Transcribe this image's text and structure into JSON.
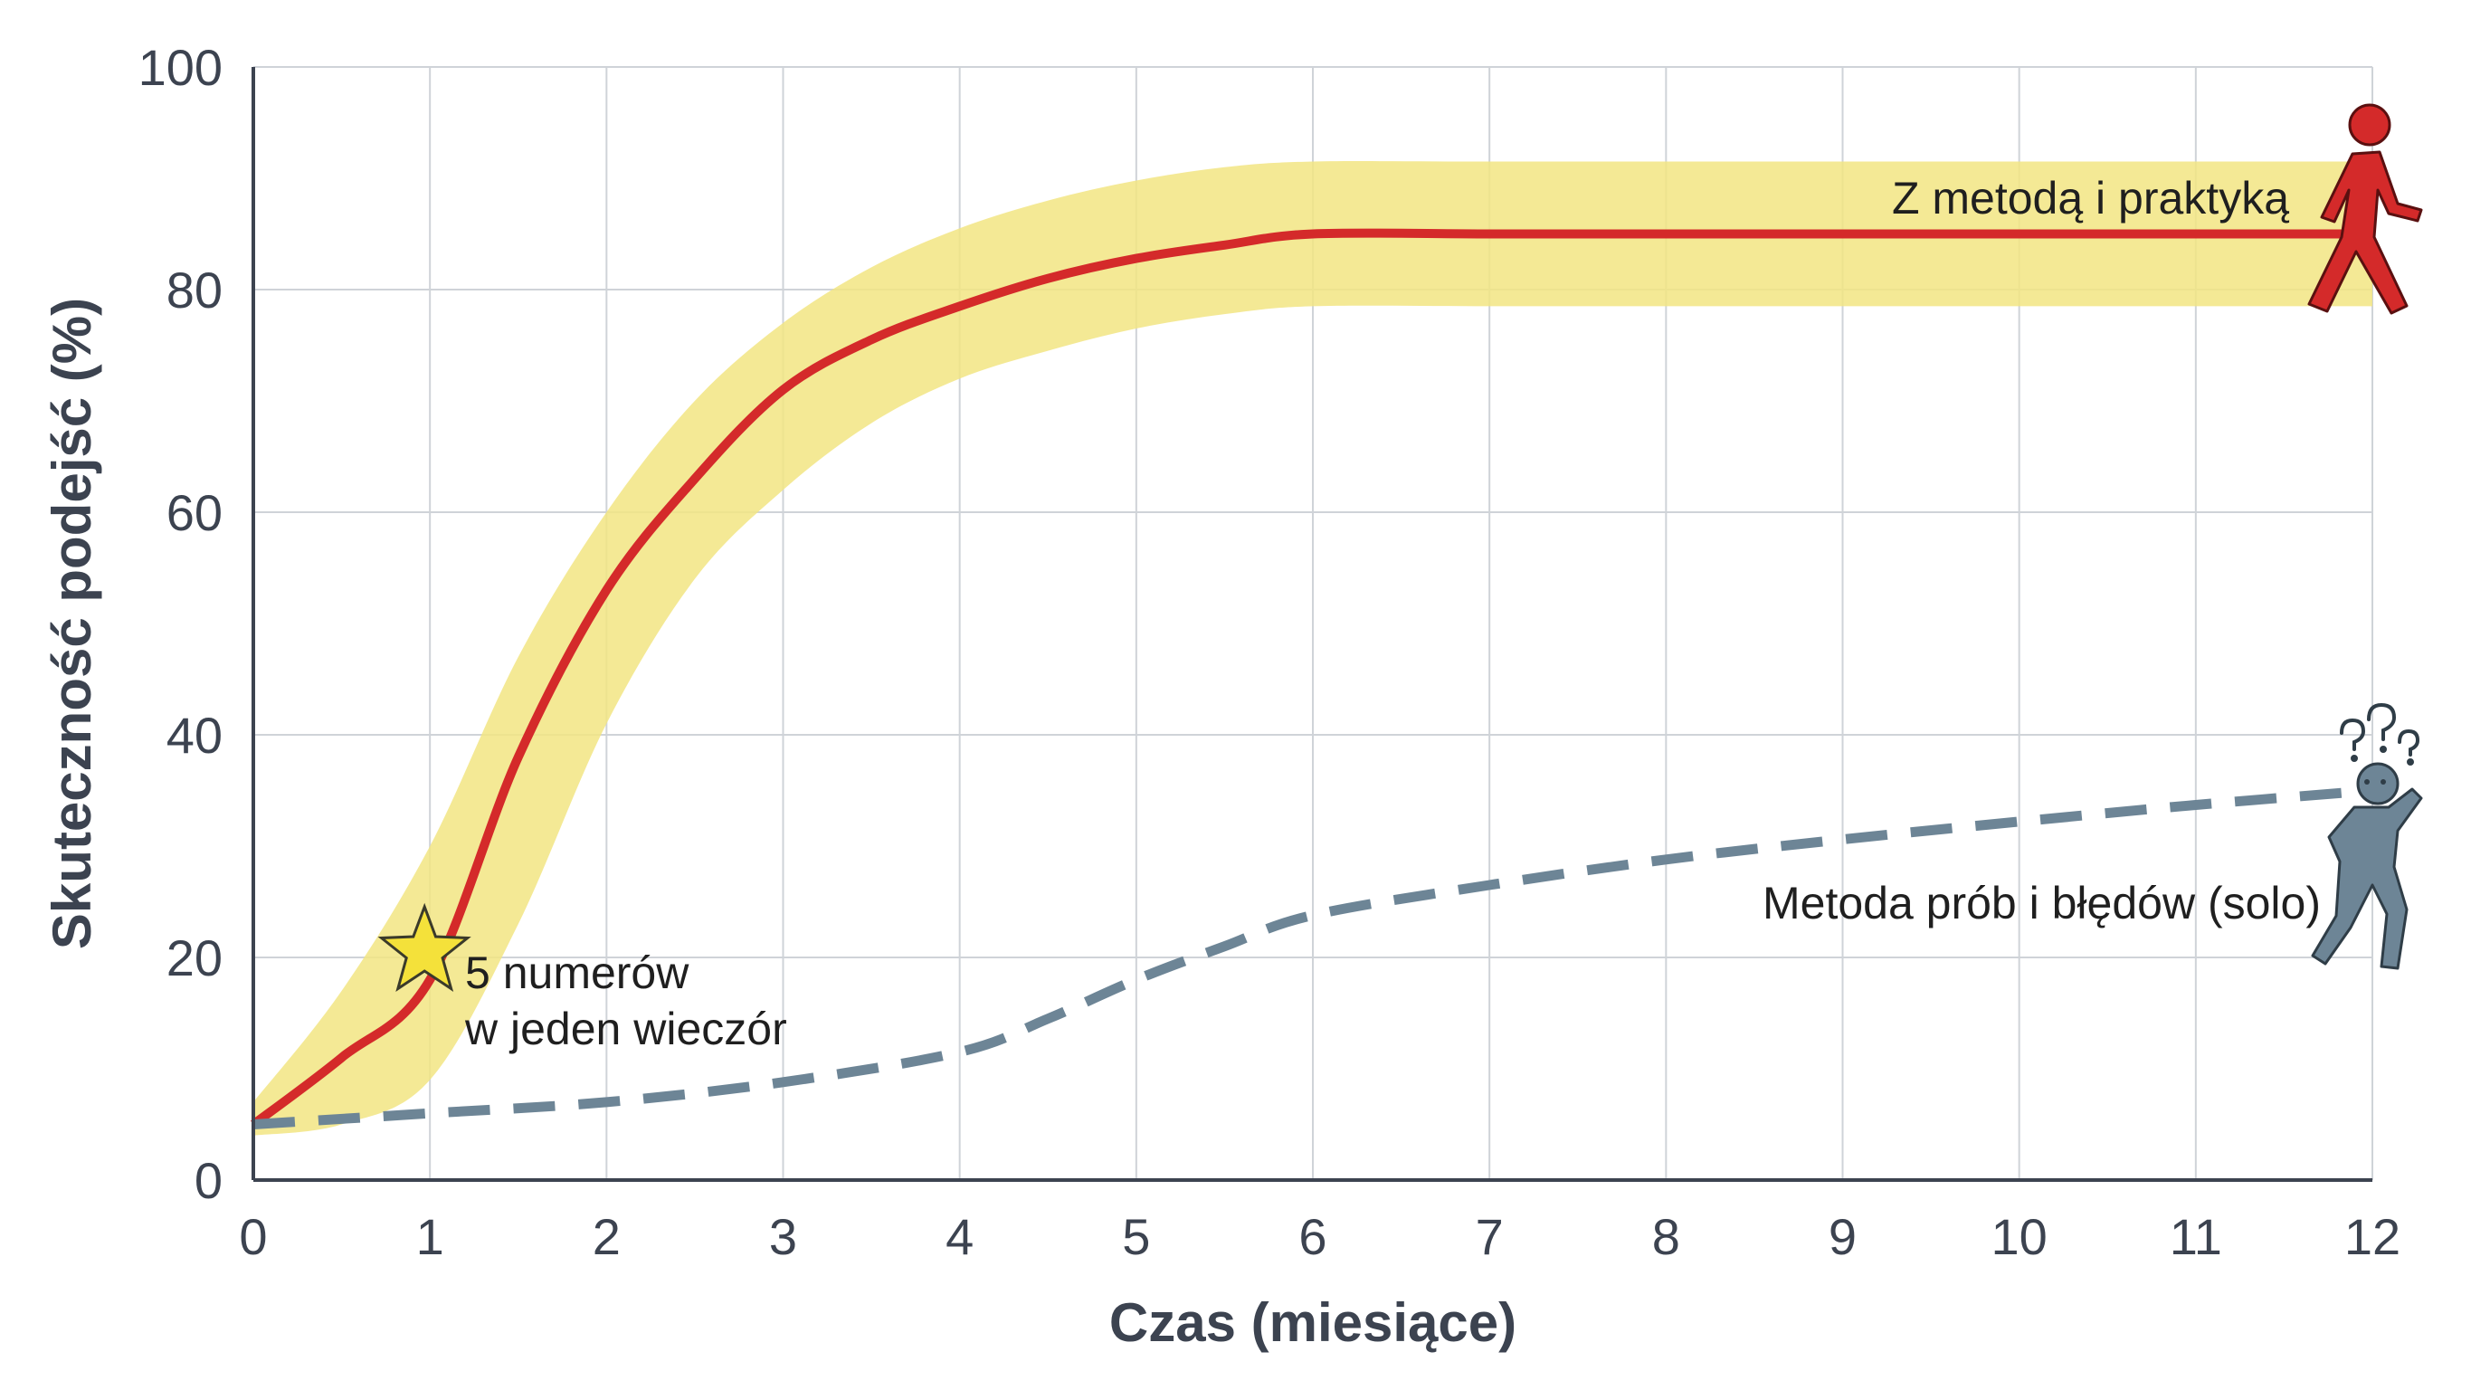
{
  "chart_data": {
    "type": "line",
    "title": "",
    "xlabel": "Czas (miesiące)",
    "ylabel": "Skuteczność podejść (%)",
    "xlim": [
      0,
      12
    ],
    "ylim": [
      0,
      100
    ],
    "x_ticks": [
      "0",
      "1",
      "2",
      "3",
      "4",
      "5",
      "6",
      "7",
      "8",
      "9",
      "10",
      "11",
      "12"
    ],
    "y_ticks": [
      "0",
      "20",
      "40",
      "60",
      "80",
      "100"
    ],
    "grid": true,
    "series": [
      {
        "name": "Z metodą i praktyką",
        "style": "solid",
        "color": "#d42a2a",
        "x": [
          0,
          0.5,
          1,
          1.5,
          2,
          2.5,
          3,
          3.5,
          4,
          4.5,
          5,
          5.5,
          6,
          7,
          8,
          9,
          10,
          11,
          12
        ],
        "y": [
          5,
          11,
          18,
          38,
          53,
          63,
          71,
          75.5,
          78.5,
          81,
          82.8,
          84,
          85,
          85,
          85,
          85,
          85,
          85,
          85
        ],
        "band_upper": [
          7,
          17,
          30,
          47,
          60,
          70,
          77,
          82,
          85.5,
          88,
          89.8,
          91,
          91.5,
          91.5,
          91.5,
          91.5,
          91.5,
          91.5,
          91.5
        ],
        "band_lower": [
          4,
          5,
          9,
          23,
          41,
          54,
          62,
          68,
          72,
          74.5,
          76.5,
          77.8,
          78.5,
          78.5,
          78.5,
          78.5,
          78.5,
          78.5,
          78.5
        ],
        "band_color": "#f2e583"
      },
      {
        "name": "Metoda prób i błędów (solo)",
        "style": "dashed",
        "color": "#6d8596",
        "x": [
          0,
          1,
          2,
          3,
          4,
          4.5,
          5,
          5.5,
          6,
          7,
          8,
          9,
          10,
          11,
          12
        ],
        "y": [
          5,
          6,
          7,
          8.8,
          11.5,
          14.5,
          18,
          21,
          23.8,
          26.5,
          28.8,
          30.6,
          32.2,
          33.7,
          35
        ]
      }
    ],
    "annotations": [
      {
        "text_lines": [
          "5 numerów",
          "w jeden wieczór"
        ],
        "x": 1,
        "y": 20,
        "marker": "star-icon"
      }
    ],
    "icons": [
      "walking-person-icon",
      "confused-person-icon"
    ]
  }
}
